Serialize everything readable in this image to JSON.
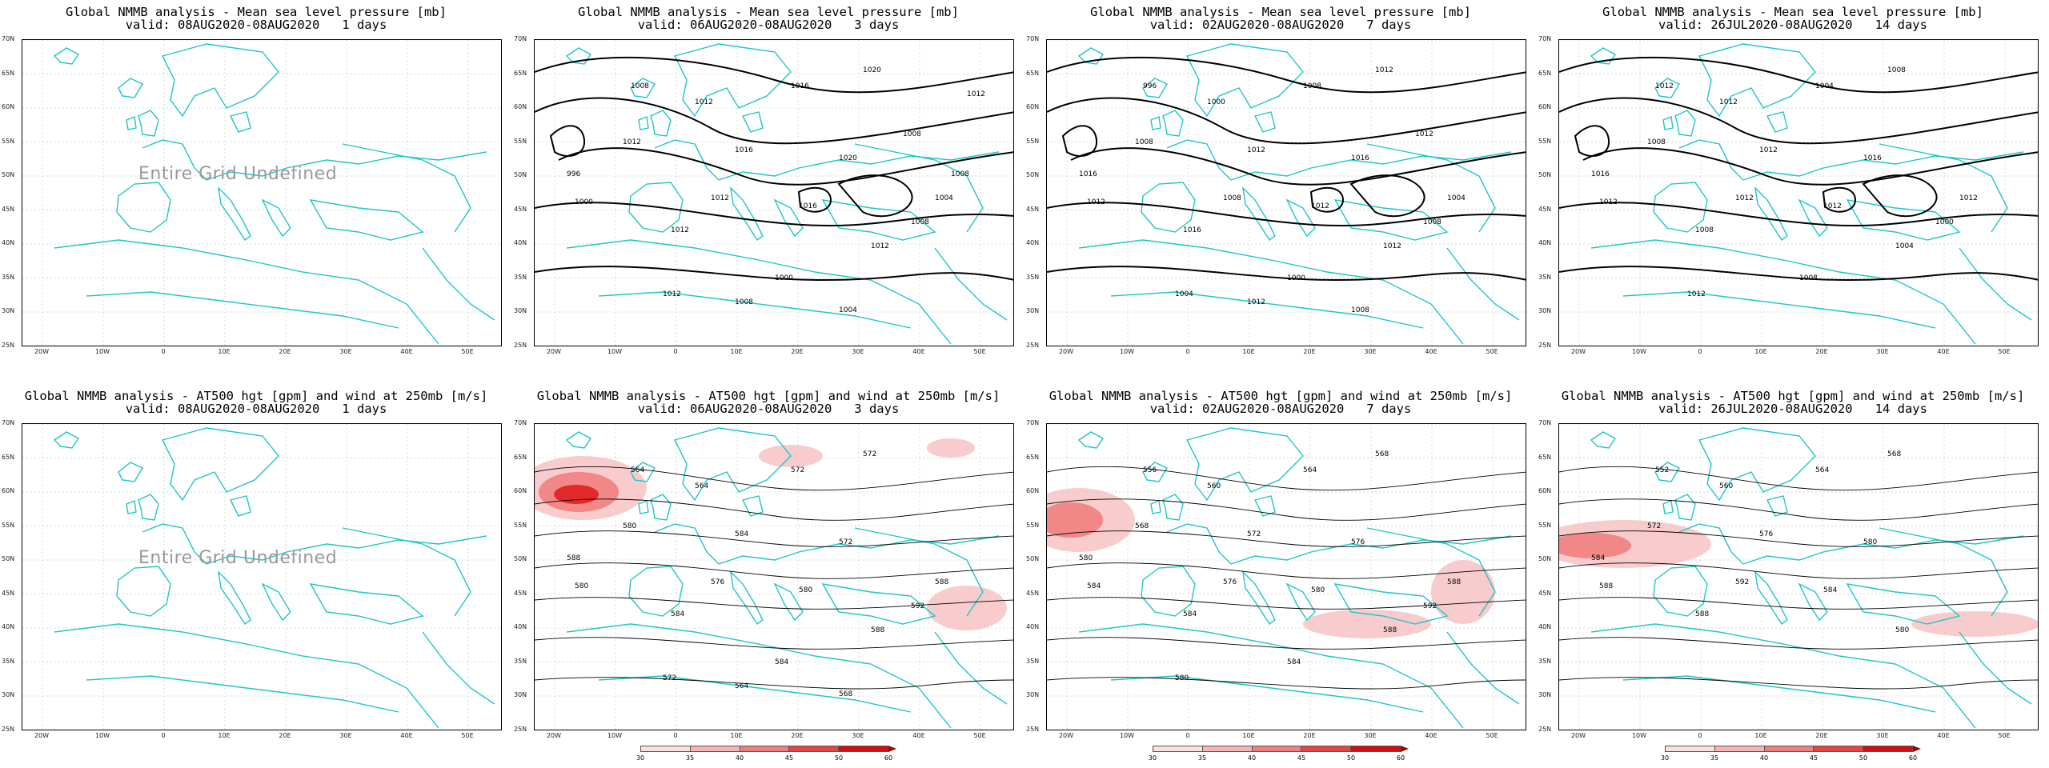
{
  "colors": {
    "coast": "#1fc6c6",
    "contour": "#000000",
    "wind_light": "#f7c6c6",
    "wind_mid": "#ef7f7f",
    "wind_strong": "#e01f1f",
    "undefined_text": "#9a9a9a"
  },
  "axes": {
    "lat_labels": [
      "70N",
      "65N",
      "60N",
      "55N",
      "50N",
      "45N",
      "40N",
      "35N",
      "30N",
      "25N"
    ],
    "lon_labels": [
      "20W",
      "10W",
      "0",
      "10E",
      "20E",
      "30E",
      "40E",
      "50E"
    ]
  },
  "colorbar": {
    "ticks": [
      "30",
      "35",
      "40",
      "45",
      "50",
      "60"
    ],
    "colors": [
      "#ffffff",
      "#fce0e0",
      "#f7b3b3",
      "#ef7f7f",
      "#e64545",
      "#d01010",
      "#a00000"
    ]
  },
  "panels": [
    {
      "title1": "Global NMMB analysis - Mean sea level pressure [mb]",
      "title2": "valid: 08AUG2020-08AUG2020   1 days",
      "undefined": "Entire Grid Undefined",
      "kind": "mslp",
      "labels": []
    },
    {
      "title1": "Global NMMB analysis - Mean sea level pressure [mb]",
      "title2": "valid: 06AUG2020-08AUG2020   3 days",
      "kind": "mslp",
      "labels": [
        "1008",
        "1012",
        "1016",
        "1020",
        "1012",
        "1016",
        "1020",
        "996",
        "1000",
        "1012",
        "1016",
        "1012",
        "1012",
        "1008",
        "1004",
        "1000",
        "1012",
        "1008",
        "1004",
        "1008",
        "1008",
        "1012"
      ]
    },
    {
      "title1": "Global NMMB analysis - Mean sea level pressure [mb]",
      "title2": "valid: 02AUG2020-08AUG2020   7 days",
      "kind": "mslp",
      "labels": [
        "996",
        "1000",
        "1008",
        "1012",
        "1008",
        "1012",
        "1016",
        "1016",
        "1012",
        "1008",
        "1012",
        "1016",
        "1012",
        "1008",
        "1004",
        "1000",
        "1004",
        "1012",
        "1008",
        "1012"
      ]
    },
    {
      "title1": "Global NMMB analysis - Mean sea level pressure [mb]",
      "title2": "valid: 26JUL2020-08AUG2020   14 days",
      "kind": "mslp",
      "labels": [
        "1012",
        "1012",
        "1004",
        "1008",
        "1008",
        "1012",
        "1016",
        "1016",
        "1012",
        "1012",
        "1012",
        "1008",
        "1004",
        "1000",
        "1012",
        "1008",
        "1012"
      ]
    },
    {
      "title1": "Global NMMB analysis - AT500 hgt [gpm] and wind at 250mb [m/s]",
      "title2": "valid: 08AUG2020-08AUG2020   1 days",
      "undefined": "Entire Grid Undefined",
      "kind": "z500",
      "labels": []
    },
    {
      "title1": "Global NMMB analysis - AT500 hgt [gpm] and wind at 250mb [m/s]",
      "title2": "valid: 06AUG2020-08AUG2020   3 days",
      "kind": "z500",
      "labels": [
        "564",
        "564",
        "572",
        "572",
        "580",
        "584",
        "572",
        "588",
        "580",
        "576",
        "580",
        "584",
        "588",
        "592",
        "588",
        "584",
        "572",
        "564",
        "568"
      ]
    },
    {
      "title1": "Global NMMB analysis - AT500 hgt [gpm] and wind at 250mb [m/s]",
      "title2": "valid: 02AUG2020-08AUG2020   7 days",
      "kind": "z500",
      "labels": [
        "556",
        "560",
        "564",
        "568",
        "568",
        "572",
        "576",
        "580",
        "584",
        "576",
        "580",
        "584",
        "588",
        "592",
        "588",
        "584",
        "580"
      ]
    },
    {
      "title1": "Global NMMB analysis - AT500 hgt [gpm] and wind at 250mb [m/s]",
      "title2": "valid: 26JUL2020-08AUG2020   14 days",
      "kind": "z500",
      "labels": [
        "552",
        "560",
        "564",
        "568",
        "572",
        "576",
        "580",
        "584",
        "588",
        "592",
        "584",
        "588",
        "580"
      ]
    }
  ]
}
